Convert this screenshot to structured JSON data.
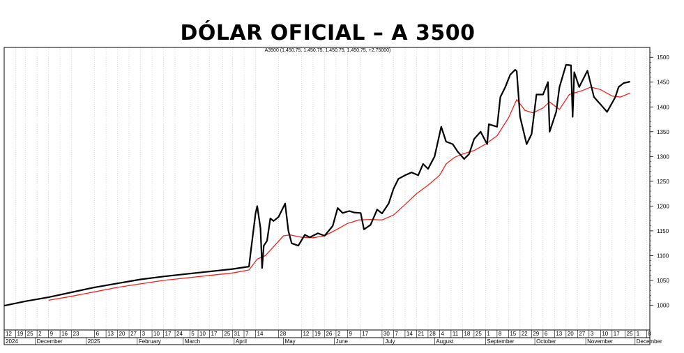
{
  "chart_data": {
    "type": "line",
    "title": "DÓLAR OFICIAL – A 3500",
    "subtitle": "A3500 (1,450.75, 1,450.75, 1,450.75, 1,450.75, +2.75000)",
    "ylim": [
      950,
      1520
    ],
    "yticks": [
      1000,
      1050,
      1100,
      1150,
      1200,
      1250,
      1300,
      1350,
      1400,
      1450,
      1500
    ],
    "xlim": [
      "2024-11-12",
      "2025-12-10"
    ],
    "grid": true,
    "colors": {
      "price": "#000000",
      "ma": "#e8261f",
      "grid": "#bdbdbd"
    },
    "day_ticks": [
      {
        "date": "2024-11-12",
        "label": "12"
      },
      {
        "date": "2024-11-19",
        "label": "19"
      },
      {
        "date": "2024-11-25",
        "label": "25"
      },
      {
        "date": "2024-12-02",
        "label": "2"
      },
      {
        "date": "2024-12-09",
        "label": "9"
      },
      {
        "date": "2024-12-16",
        "label": "16"
      },
      {
        "date": "2024-12-23",
        "label": "23"
      },
      {
        "date": "2025-01-06",
        "label": "6"
      },
      {
        "date": "2025-01-13",
        "label": "13"
      },
      {
        "date": "2025-01-20",
        "label": "20"
      },
      {
        "date": "2025-01-27",
        "label": "27"
      },
      {
        "date": "2025-02-03",
        "label": "3"
      },
      {
        "date": "2025-02-10",
        "label": "10"
      },
      {
        "date": "2025-02-17",
        "label": "17"
      },
      {
        "date": "2025-02-24",
        "label": "24"
      },
      {
        "date": "2025-03-05",
        "label": "5"
      },
      {
        "date": "2025-03-10",
        "label": "10"
      },
      {
        "date": "2025-03-17",
        "label": "17"
      },
      {
        "date": "2025-03-25",
        "label": "25"
      },
      {
        "date": "2025-03-31",
        "label": "31"
      },
      {
        "date": "2025-04-07",
        "label": "7"
      },
      {
        "date": "2025-04-14",
        "label": "14"
      },
      {
        "date": "2025-04-28",
        "label": "28"
      },
      {
        "date": "2025-05-12",
        "label": "12"
      },
      {
        "date": "2025-05-19",
        "label": "19"
      },
      {
        "date": "2025-05-26",
        "label": "26"
      },
      {
        "date": "2025-06-02",
        "label": "2"
      },
      {
        "date": "2025-06-09",
        "label": "9"
      },
      {
        "date": "2025-06-17",
        "label": "17"
      },
      {
        "date": "2025-06-30",
        "label": "30"
      },
      {
        "date": "2025-07-07",
        "label": "7"
      },
      {
        "date": "2025-07-14",
        "label": "14"
      },
      {
        "date": "2025-07-21",
        "label": "21"
      },
      {
        "date": "2025-07-28",
        "label": "28"
      },
      {
        "date": "2025-08-04",
        "label": "4"
      },
      {
        "date": "2025-08-11",
        "label": "11"
      },
      {
        "date": "2025-08-18",
        "label": "18"
      },
      {
        "date": "2025-08-25",
        "label": "25"
      },
      {
        "date": "2025-09-01",
        "label": "1"
      },
      {
        "date": "2025-09-08",
        "label": "8"
      },
      {
        "date": "2025-09-15",
        "label": "15"
      },
      {
        "date": "2025-09-22",
        "label": "22"
      },
      {
        "date": "2025-09-29",
        "label": "29"
      },
      {
        "date": "2025-10-06",
        "label": "6"
      },
      {
        "date": "2025-10-13",
        "label": "13"
      },
      {
        "date": "2025-10-20",
        "label": "20"
      },
      {
        "date": "2025-10-27",
        "label": "27"
      },
      {
        "date": "2025-11-03",
        "label": "3"
      },
      {
        "date": "2025-11-10",
        "label": "10"
      },
      {
        "date": "2025-11-17",
        "label": "17"
      },
      {
        "date": "2025-11-25",
        "label": "25"
      },
      {
        "date": "2025-12-01",
        "label": "1"
      },
      {
        "date": "2025-12-08",
        "label": "8"
      }
    ],
    "month_ticks": [
      {
        "date": "2024-11-12",
        "label": "2024"
      },
      {
        "date": "2024-12-01",
        "label": "December"
      },
      {
        "date": "2025-01-01",
        "label": "2025"
      },
      {
        "date": "2025-02-01",
        "label": "February"
      },
      {
        "date": "2025-03-01",
        "label": "March"
      },
      {
        "date": "2025-04-01",
        "label": "April"
      },
      {
        "date": "2025-05-01",
        "label": "May"
      },
      {
        "date": "2025-06-01",
        "label": "June"
      },
      {
        "date": "2025-07-01",
        "label": "July"
      },
      {
        "date": "2025-08-01",
        "label": "August"
      },
      {
        "date": "2025-09-01",
        "label": "September"
      },
      {
        "date": "2025-10-01",
        "label": "October"
      },
      {
        "date": "2025-11-01",
        "label": "November"
      },
      {
        "date": "2025-12-01",
        "label": "December"
      }
    ],
    "series": [
      {
        "points": [
          [
            "2024-11-12",
            999
          ],
          [
            "2024-11-25",
            1008
          ],
          [
            "2024-12-09",
            1016
          ],
          [
            "2024-12-23",
            1026
          ],
          [
            "2025-01-06",
            1036
          ],
          [
            "2025-01-20",
            1044
          ],
          [
            "2025-02-03",
            1052
          ],
          [
            "2025-02-17",
            1058
          ],
          [
            "2025-03-03",
            1063
          ],
          [
            "2025-03-17",
            1068
          ],
          [
            "2025-03-31",
            1073
          ],
          [
            "2025-04-10",
            1078
          ],
          [
            "2025-04-11",
            1105
          ],
          [
            "2025-04-14",
            1185
          ],
          [
            "2025-04-15",
            1200
          ],
          [
            "2025-04-17",
            1155
          ],
          [
            "2025-04-18",
            1075
          ],
          [
            "2025-04-19",
            1120
          ],
          [
            "2025-04-21",
            1130
          ],
          [
            "2025-04-23",
            1175
          ],
          [
            "2025-04-25",
            1170
          ],
          [
            "2025-04-28",
            1178
          ],
          [
            "2025-05-02",
            1205
          ],
          [
            "2025-05-04",
            1150
          ],
          [
            "2025-05-06",
            1125
          ],
          [
            "2025-05-10",
            1120
          ],
          [
            "2025-05-14",
            1142
          ],
          [
            "2025-05-17",
            1137
          ],
          [
            "2025-05-22",
            1145
          ],
          [
            "2025-05-26",
            1140
          ],
          [
            "2025-05-31",
            1160
          ],
          [
            "2025-06-03",
            1196
          ],
          [
            "2025-06-06",
            1186
          ],
          [
            "2025-06-10",
            1190
          ],
          [
            "2025-06-13",
            1187
          ],
          [
            "2025-06-17",
            1186
          ],
          [
            "2025-06-19",
            1153
          ],
          [
            "2025-06-23",
            1162
          ],
          [
            "2025-06-27",
            1193
          ],
          [
            "2025-06-30",
            1185
          ],
          [
            "2025-07-04",
            1205
          ],
          [
            "2025-07-07",
            1235
          ],
          [
            "2025-07-10",
            1255
          ],
          [
            "2025-07-14",
            1262
          ],
          [
            "2025-07-18",
            1268
          ],
          [
            "2025-07-22",
            1262
          ],
          [
            "2025-07-25",
            1285
          ],
          [
            "2025-07-28",
            1275
          ],
          [
            "2025-08-01",
            1300
          ],
          [
            "2025-08-05",
            1360
          ],
          [
            "2025-08-08",
            1330
          ],
          [
            "2025-08-12",
            1325
          ],
          [
            "2025-08-15",
            1310
          ],
          [
            "2025-08-19",
            1295
          ],
          [
            "2025-08-22",
            1305
          ],
          [
            "2025-08-25",
            1335
          ],
          [
            "2025-08-29",
            1350
          ],
          [
            "2025-09-02",
            1325
          ],
          [
            "2025-09-03",
            1365
          ],
          [
            "2025-09-08",
            1360
          ],
          [
            "2025-09-10",
            1420
          ],
          [
            "2025-09-13",
            1440
          ],
          [
            "2025-09-16",
            1465
          ],
          [
            "2025-09-19",
            1475
          ],
          [
            "2025-09-20",
            1472
          ],
          [
            "2025-09-22",
            1380
          ],
          [
            "2025-09-26",
            1325
          ],
          [
            "2025-09-29",
            1345
          ],
          [
            "2025-10-02",
            1425
          ],
          [
            "2025-10-06",
            1425
          ],
          [
            "2025-10-09",
            1450
          ],
          [
            "2025-10-10",
            1350
          ],
          [
            "2025-10-14",
            1390
          ],
          [
            "2025-10-16",
            1440
          ],
          [
            "2025-10-20",
            1485
          ],
          [
            "2025-10-23",
            1484
          ],
          [
            "2025-10-24",
            1380
          ],
          [
            "2025-10-25",
            1470
          ],
          [
            "2025-10-28",
            1440
          ],
          [
            "2025-11-02",
            1473
          ],
          [
            "2025-11-06",
            1420
          ],
          [
            "2025-11-10",
            1405
          ],
          [
            "2025-11-14",
            1390
          ],
          [
            "2025-11-19",
            1420
          ],
          [
            "2025-11-21",
            1440
          ],
          [
            "2025-11-24",
            1448
          ],
          [
            "2025-11-28",
            1451
          ]
        ]
      },
      {
        "points": [
          [
            "2024-12-09",
            1010
          ],
          [
            "2024-12-23",
            1018
          ],
          [
            "2025-01-06",
            1027
          ],
          [
            "2025-01-20",
            1036
          ],
          [
            "2025-02-03",
            1043
          ],
          [
            "2025-02-17",
            1050
          ],
          [
            "2025-03-03",
            1055
          ],
          [
            "2025-03-17",
            1060
          ],
          [
            "2025-03-31",
            1065
          ],
          [
            "2025-04-10",
            1071
          ],
          [
            "2025-04-15",
            1093
          ],
          [
            "2025-04-20",
            1100
          ],
          [
            "2025-04-25",
            1118
          ],
          [
            "2025-05-01",
            1140
          ],
          [
            "2025-05-05",
            1142
          ],
          [
            "2025-05-12",
            1137
          ],
          [
            "2025-05-19",
            1136
          ],
          [
            "2025-05-26",
            1140
          ],
          [
            "2025-06-02",
            1152
          ],
          [
            "2025-06-09",
            1165
          ],
          [
            "2025-06-16",
            1172
          ],
          [
            "2025-06-23",
            1173
          ],
          [
            "2025-06-30",
            1172
          ],
          [
            "2025-07-07",
            1182
          ],
          [
            "2025-07-14",
            1203
          ],
          [
            "2025-07-21",
            1225
          ],
          [
            "2025-07-28",
            1242
          ],
          [
            "2025-08-04",
            1262
          ],
          [
            "2025-08-08",
            1285
          ],
          [
            "2025-08-13",
            1298
          ],
          [
            "2025-08-18",
            1305
          ],
          [
            "2025-08-25",
            1312
          ],
          [
            "2025-09-01",
            1325
          ],
          [
            "2025-09-08",
            1342
          ],
          [
            "2025-09-15",
            1378
          ],
          [
            "2025-09-20",
            1415
          ],
          [
            "2025-09-25",
            1393
          ],
          [
            "2025-09-30",
            1388
          ],
          [
            "2025-10-06",
            1398
          ],
          [
            "2025-10-10",
            1410
          ],
          [
            "2025-10-16",
            1395
          ],
          [
            "2025-10-22",
            1425
          ],
          [
            "2025-10-30",
            1433
          ],
          [
            "2025-11-04",
            1440
          ],
          [
            "2025-11-10",
            1435
          ],
          [
            "2025-11-17",
            1422
          ],
          [
            "2025-11-22",
            1420
          ],
          [
            "2025-11-28",
            1428
          ]
        ]
      }
    ]
  }
}
